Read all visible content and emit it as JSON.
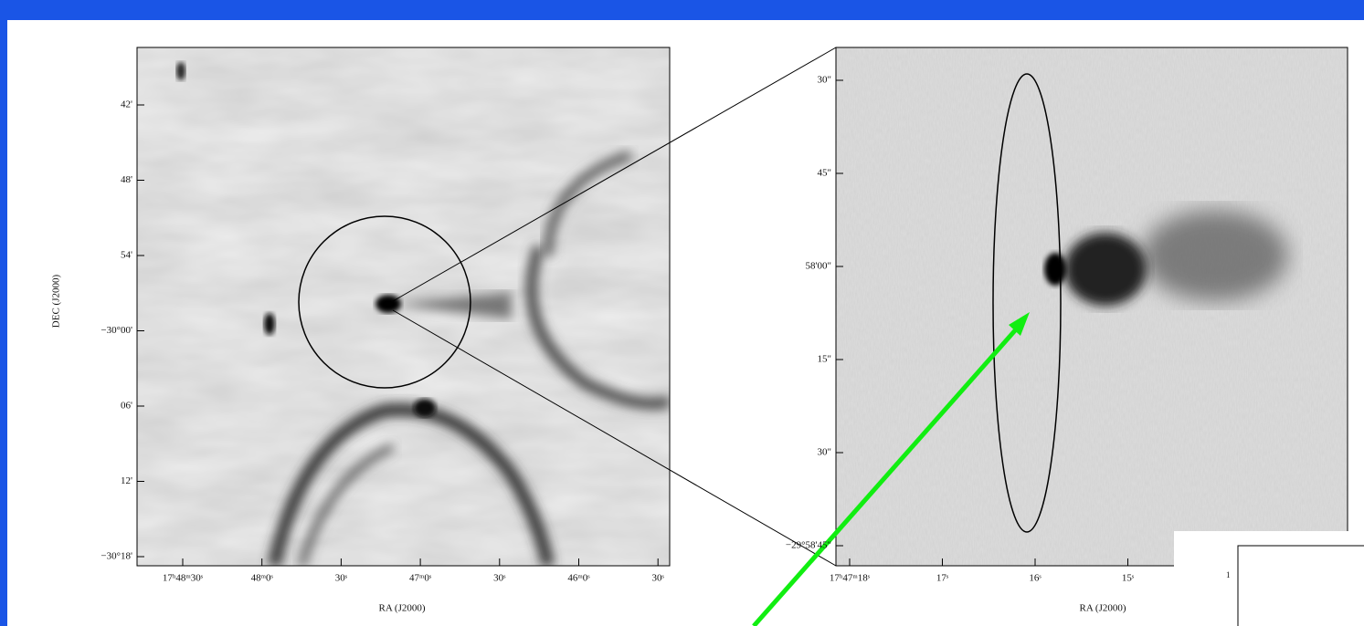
{
  "left_panel": {
    "y_label": "DEC (J2000)",
    "x_label": "RA (J2000)",
    "y_ticks": [
      "42'",
      "48'",
      "54'",
      "−30°00'",
      "06'",
      "12'",
      "−30°18'"
    ],
    "x_ticks": [
      "17ʰ48ᵐ30ˢ",
      "48ᵐ0ˢ",
      "30ˢ",
      "47ᵐ0ˢ",
      "30ˢ",
      "46ᵐ0ˢ",
      "30ˢ"
    ]
  },
  "right_panel": {
    "x_label": "RA (J2000)",
    "y_ticks": [
      "30\"",
      "45\"",
      "58'00\"",
      "15\"",
      "30\"",
      "−29°58'45\""
    ],
    "x_ticks": [
      "17ʰ47ᵐ18ˢ",
      "17ˢ",
      "16ˢ",
      "15ˢ"
    ]
  },
  "inset": {
    "y_tick": "1"
  }
}
